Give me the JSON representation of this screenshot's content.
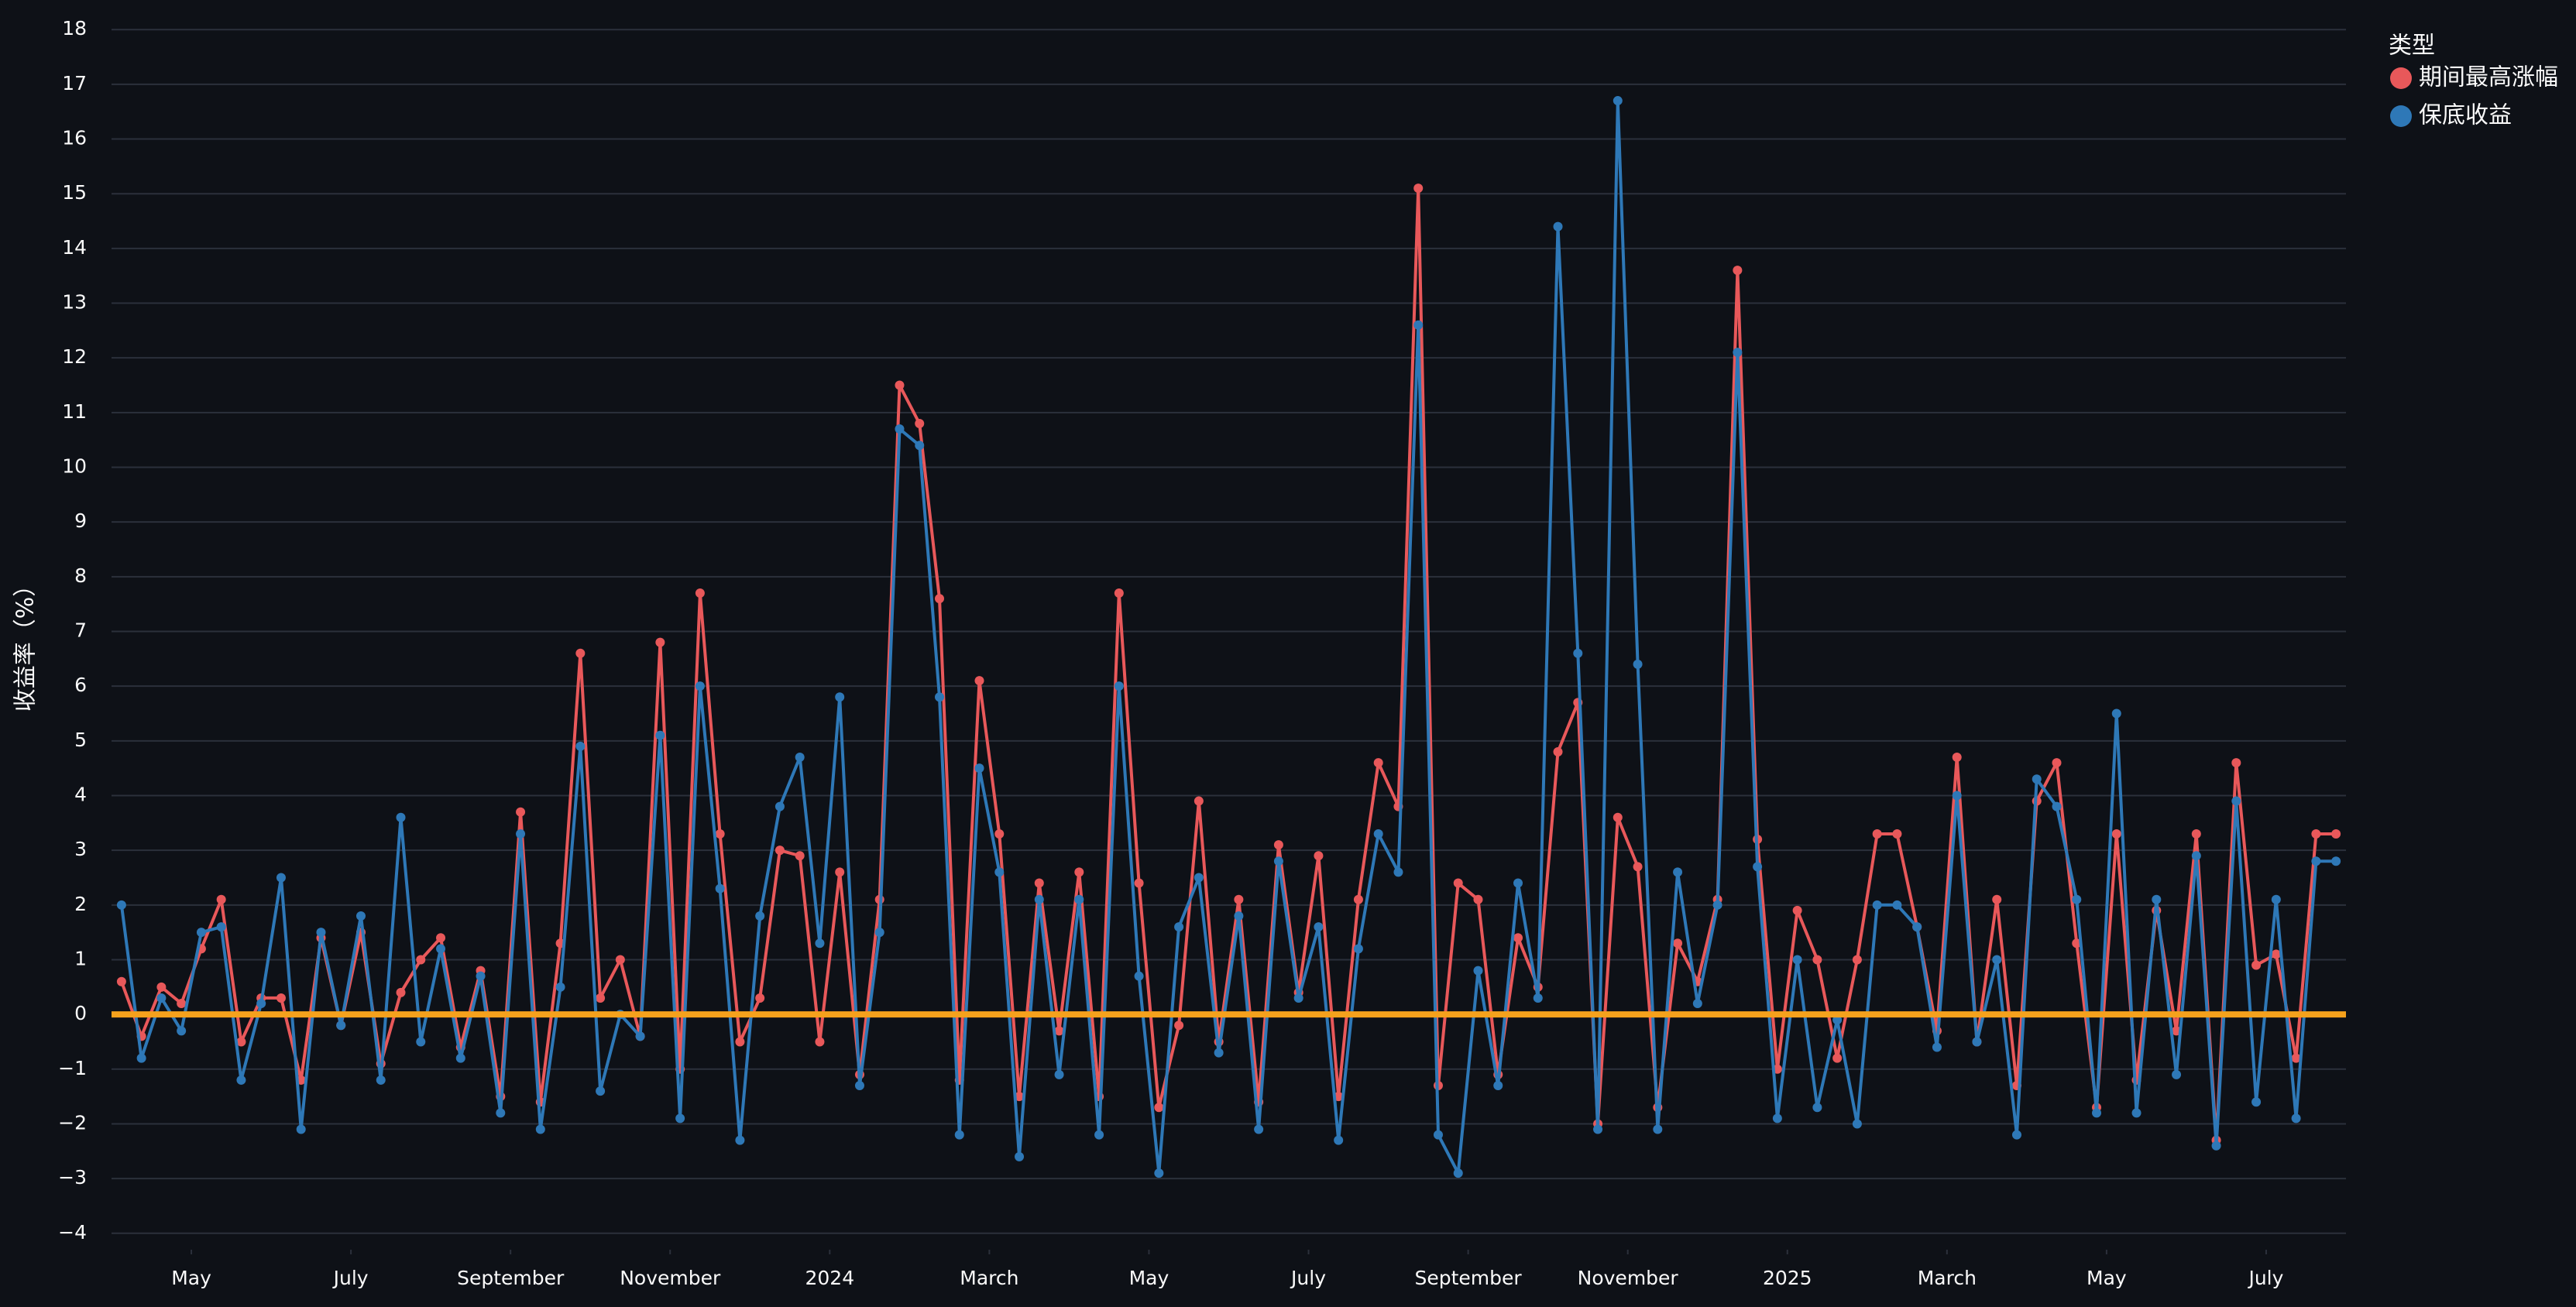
{
  "chart_data": {
    "type": "line",
    "y_label": "收益率（%）",
    "legend_title": "类型",
    "legend_position": "top-right",
    "grid": true,
    "reference_line": {
      "value": 0,
      "color": "#f5a11c"
    },
    "xlim": [
      "2023-04",
      "2025-08"
    ],
    "xticks": [
      {
        "value": "2023-05",
        "label": "May"
      },
      {
        "value": "2023-07",
        "label": "July"
      },
      {
        "value": "2023-09",
        "label": "September"
      },
      {
        "value": "2023-11",
        "label": "November"
      },
      {
        "value": "2024-01",
        "label": "2024"
      },
      {
        "value": "2024-03",
        "label": "March"
      },
      {
        "value": "2024-05",
        "label": "May"
      },
      {
        "value": "2024-07",
        "label": "July"
      },
      {
        "value": "2024-09",
        "label": "September"
      },
      {
        "value": "2024-11",
        "label": "November"
      },
      {
        "value": "2025-01",
        "label": "2025"
      },
      {
        "value": "2025-03",
        "label": "March"
      },
      {
        "value": "2025-05",
        "label": "May"
      },
      {
        "value": "2025-07",
        "label": "July"
      }
    ],
    "ylim": [
      -4.3,
      18.3
    ],
    "yticks": [
      {
        "value": -4,
        "label": "−4"
      },
      {
        "value": -3,
        "label": "−3"
      },
      {
        "value": -2,
        "label": "−2"
      },
      {
        "value": -1,
        "label": "−1"
      },
      0,
      1,
      2,
      3,
      4,
      5,
      6,
      7,
      8,
      9,
      10,
      11,
      12,
      13,
      14,
      15,
      16,
      17,
      18
    ],
    "x": [
      "2023-04",
      "2023-04",
      "2023-04",
      "2023-04",
      "2023-05",
      "2023-05",
      "2023-05",
      "2023-05",
      "2023-06",
      "2023-06",
      "2023-06",
      "2023-06",
      "2023-07",
      "2023-07",
      "2023-07",
      "2023-07",
      "2023-08",
      "2023-08",
      "2023-08",
      "2023-08",
      "2023-09",
      "2023-09",
      "2023-09",
      "2023-09",
      "2023-10",
      "2023-10",
      "2023-10",
      "2023-10",
      "2023-11",
      "2023-11",
      "2023-11",
      "2023-11",
      "2023-12",
      "2023-12",
      "2023-12",
      "2023-12",
      "2024-01",
      "2024-01",
      "2024-01",
      "2024-01",
      "2024-02",
      "2024-02",
      "2024-02",
      "2024-02",
      "2024-03",
      "2024-03",
      "2024-03",
      "2024-03",
      "2024-04",
      "2024-04",
      "2024-04",
      "2024-04",
      "2024-05",
      "2024-05",
      "2024-05",
      "2024-05",
      "2024-06",
      "2024-06",
      "2024-06",
      "2024-06",
      "2024-07",
      "2024-07",
      "2024-07",
      "2024-07",
      "2024-08",
      "2024-08",
      "2024-08",
      "2024-08",
      "2024-09",
      "2024-09",
      "2024-09",
      "2024-09",
      "2024-10",
      "2024-10",
      "2024-10",
      "2024-10",
      "2024-11",
      "2024-11",
      "2024-11",
      "2024-11",
      "2024-12",
      "2024-12",
      "2024-12",
      "2024-12",
      "2025-01",
      "2025-01",
      "2025-01",
      "2025-01",
      "2025-02",
      "2025-02",
      "2025-02",
      "2025-02",
      "2025-03",
      "2025-03",
      "2025-03",
      "2025-03",
      "2025-04",
      "2025-04",
      "2025-04",
      "2025-04",
      "2025-05",
      "2025-05",
      "2025-05",
      "2025-05",
      "2025-06",
      "2025-06",
      "2025-06",
      "2025-06",
      "2025-07",
      "2025-07",
      "2025-07",
      "2025-07"
    ],
    "series": [
      {
        "name": "期间最高涨幅",
        "color": "#e8585a",
        "values": [
          0.6,
          -0.4,
          0.5,
          0.2,
          1.2,
          2.1,
          -0.5,
          0.3,
          0.3,
          -1.2,
          1.4,
          -0.2,
          1.5,
          -0.9,
          0.4,
          1.0,
          1.4,
          -0.6,
          0.8,
          -1.5,
          3.7,
          -1.6,
          1.3,
          6.6,
          0.3,
          1.0,
          -0.4,
          6.8,
          -1.0,
          7.7,
          3.3,
          -0.5,
          0.3,
          3.0,
          2.9,
          -0.5,
          2.6,
          -1.1,
          2.1,
          11.5,
          10.8,
          7.6,
          -1.2,
          6.1,
          3.3,
          -1.5,
          2.4,
          -0.3,
          2.6,
          -1.5,
          7.7,
          2.4,
          -1.7,
          -0.2,
          3.9,
          -0.5,
          2.1,
          -1.6,
          3.1,
          0.4,
          2.9,
          -1.5,
          2.1,
          4.6,
          3.8,
          15.1,
          -1.3,
          2.4,
          2.1,
          -1.1,
          1.4,
          0.5,
          4.8,
          5.7,
          -2.0,
          3.6,
          2.7,
          -1.7,
          1.3,
          0.6,
          2.1,
          13.6,
          3.2,
          -1.0,
          1.9,
          1.0,
          -0.8,
          1.0,
          3.3,
          3.3,
          1.6,
          -0.3,
          4.7,
          -0.5,
          2.1,
          -1.3,
          3.9,
          4.6,
          1.3,
          -1.7,
          3.3,
          -1.2,
          1.9,
          -0.3,
          3.3,
          -2.3,
          4.6,
          0.9,
          1.1,
          -0.8,
          3.3,
          3.3
        ]
      },
      {
        "name": "保底收益",
        "color": "#2e78b7",
        "values": [
          2.0,
          -0.8,
          0.3,
          -0.3,
          1.5,
          1.6,
          -1.2,
          0.2,
          2.5,
          -2.1,
          1.5,
          -0.2,
          1.8,
          -1.2,
          3.6,
          -0.5,
          1.2,
          -0.8,
          0.7,
          -1.8,
          3.3,
          -2.1,
          0.5,
          4.9,
          -1.4,
          0.0,
          -0.4,
          5.1,
          -1.9,
          6.0,
          2.3,
          -2.3,
          1.8,
          3.8,
          4.7,
          1.3,
          5.8,
          -1.3,
          1.5,
          10.7,
          10.4,
          5.8,
          -2.2,
          4.5,
          2.6,
          -2.6,
          2.1,
          -1.1,
          2.1,
          -2.2,
          6.0,
          0.7,
          -2.9,
          1.6,
          2.5,
          -0.7,
          1.8,
          -2.1,
          2.8,
          0.3,
          1.6,
          -2.3,
          1.2,
          3.3,
          2.6,
          12.6,
          -2.2,
          -2.9,
          0.8,
          -1.3,
          2.4,
          0.3,
          14.4,
          6.6,
          -2.1,
          16.7,
          6.4,
          -2.1,
          2.6,
          0.2,
          2.0,
          12.1,
          2.7,
          -1.9,
          1.0,
          -1.7,
          -0.1,
          -2.0,
          2.0,
          2.0,
          1.6,
          -0.6,
          4.0,
          -0.5,
          1.0,
          -2.2,
          4.3,
          3.8,
          2.1,
          -1.8,
          5.5,
          -1.8,
          2.1,
          -1.1,
          2.9,
          -2.4,
          3.9,
          -1.6,
          2.1,
          -1.9,
          2.8,
          2.8
        ]
      }
    ]
  }
}
